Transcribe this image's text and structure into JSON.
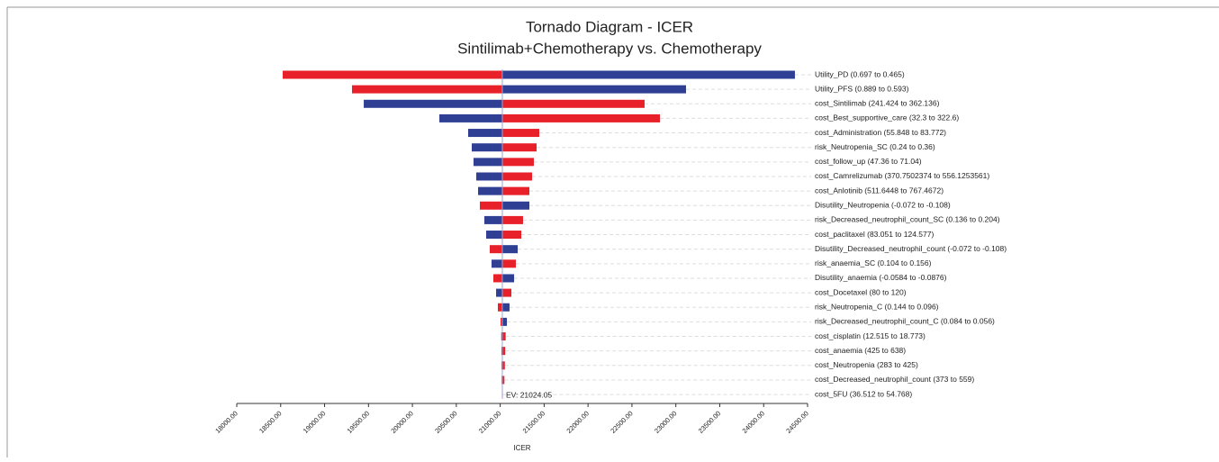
{
  "chart_data": {
    "type": "tornado",
    "title": "Tornado Diagram - ICER",
    "subtitle": "Sintilimab+Chemotherapy vs. Chemotherapy",
    "x_label": "ICER",
    "ev": {
      "value": 21024.05,
      "label": "EV: 21024.05"
    },
    "xlim": [
      18000,
      24500
    ],
    "xticks": [
      {
        "value": 18000,
        "label": "18000.00"
      },
      {
        "value": 18500,
        "label": "18500.00"
      },
      {
        "value": 19000,
        "label": "19000.00"
      },
      {
        "value": 19500,
        "label": "19500.00"
      },
      {
        "value": 20000,
        "label": "20000.00"
      },
      {
        "value": 20500,
        "label": "20500.00"
      },
      {
        "value": 21000,
        "label": "21000.00"
      },
      {
        "value": 21500,
        "label": "21500.00"
      },
      {
        "value": 22000,
        "label": "22000.00"
      },
      {
        "value": 22500,
        "label": "22500.00"
      },
      {
        "value": 23000,
        "label": "23000.00"
      },
      {
        "value": 23500,
        "label": "23500.00"
      },
      {
        "value": 24000,
        "label": "24000.00"
      },
      {
        "value": 24500,
        "label": "24500.00"
      }
    ],
    "bars": [
      {
        "label": "Utility_PD (0.697 to 0.465)",
        "values": [
          18523,
          24356
        ],
        "colors": [
          "#e8202a",
          "#2e3f94"
        ]
      },
      {
        "label": "Utility_PFS (0.889 to 0.593)",
        "values": [
          19312,
          23116
        ],
        "colors": [
          "#e8202a",
          "#2e3f94"
        ]
      },
      {
        "label": "cost_Sintilimab (241.424 to 362.136)",
        "values": [
          19446,
          22644
        ],
        "colors": [
          "#2e3f94",
          "#e8202a"
        ]
      },
      {
        "label": "cost_Best_supportive_care (32.3 to 322.6)",
        "values": [
          20307,
          22819
        ],
        "colors": [
          "#2e3f94",
          "#e8202a"
        ]
      },
      {
        "label": "cost_Administration (55.848 to 83.772)",
        "values": [
          20635,
          21445
        ],
        "colors": [
          "#2e3f94",
          "#e8202a"
        ]
      },
      {
        "label": "risk_Neutropenia_SC (0.24 to 0.36)",
        "values": [
          20676,
          21414
        ],
        "colors": [
          "#2e3f94",
          "#e8202a"
        ]
      },
      {
        "label": "cost_follow_up (47.36 to 71.04)",
        "values": [
          20696,
          21383
        ],
        "colors": [
          "#2e3f94",
          "#e8202a"
        ]
      },
      {
        "label": "cost_Camrelizumab (370.7502374 to 556.1253561)",
        "values": [
          20727,
          21363
        ],
        "colors": [
          "#2e3f94",
          "#e8202a"
        ]
      },
      {
        "label": "cost_Anlotinib (511.6448 to 767.4672)",
        "values": [
          20748,
          21332
        ],
        "colors": [
          "#2e3f94",
          "#e8202a"
        ]
      },
      {
        "label": "Disutility_Neutropenia (-0.072 to -0.108)",
        "values": [
          20768,
          21332
        ],
        "colors": [
          "#e8202a",
          "#2e3f94"
        ]
      },
      {
        "label": "risk_Decreased_neutrophil_count_SC (0.136 to 0.204)",
        "values": [
          20819,
          21260
        ],
        "colors": [
          "#2e3f94",
          "#e8202a"
        ]
      },
      {
        "label": "cost_paclitaxel (83.051 to 124.577)",
        "values": [
          20840,
          21240
        ],
        "colors": [
          "#2e3f94",
          "#e8202a"
        ]
      },
      {
        "label": "Disutility_Decreased_neutrophil_count (-0.072 to -0.108)",
        "values": [
          20881,
          21199
        ],
        "colors": [
          "#e8202a",
          "#2e3f94"
        ]
      },
      {
        "label": "risk_anaemia_SC (0.104 to 0.156)",
        "values": [
          20901,
          21178
        ],
        "colors": [
          "#2e3f94",
          "#e8202a"
        ]
      },
      {
        "label": "Disutility_anaemia (-0.0584 to -0.0876)",
        "values": [
          20922,
          21158
        ],
        "colors": [
          "#e8202a",
          "#2e3f94"
        ]
      },
      {
        "label": "cost_Docetaxel (80 to 120)",
        "values": [
          20953,
          21127
        ],
        "colors": [
          "#2e3f94",
          "#e8202a"
        ]
      },
      {
        "label": "risk_Neutropenia_C (0.144 to 0.096)",
        "values": [
          20973,
          21106
        ],
        "colors": [
          "#e8202a",
          "#2e3f94"
        ]
      },
      {
        "label": "risk_Decreased_neutrophil_count_C (0.084 to 0.056)",
        "values": [
          21004,
          21076
        ],
        "colors": [
          "#e8202a",
          "#2e3f94"
        ]
      },
      {
        "label": "cost_cisplatin (12.515 to 18.773)",
        "values": [
          21012,
          21062
        ],
        "colors": [
          "#2e3f94",
          "#e8202a"
        ]
      },
      {
        "label": "cost_anaemia (425 to 638)",
        "values": [
          21014,
          21057
        ],
        "colors": [
          "#2e3f94",
          "#e8202a"
        ]
      },
      {
        "label": "cost_Neutropenia (283 to 425)",
        "values": [
          21015,
          21053
        ],
        "colors": [
          "#2e3f94",
          "#e8202a"
        ]
      },
      {
        "label": "cost_Decreased_neutrophil_count (373 to 559)",
        "values": [
          21016,
          21048
        ],
        "colors": [
          "#2e3f94",
          "#e8202a"
        ]
      },
      {
        "label": "cost_5FU (36.512 to 54.768)",
        "values": [
          21021,
          21029
        ],
        "colors": [
          "#2e3f94",
          "#e8202a"
        ]
      }
    ]
  }
}
